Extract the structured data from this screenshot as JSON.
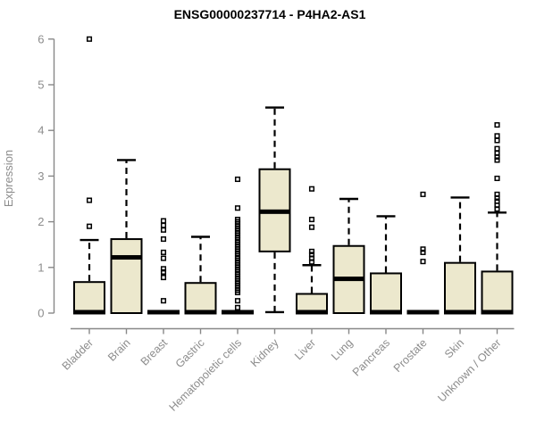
{
  "chart_data": {
    "type": "boxplot",
    "title": "ENSG00000237714 - P4HA2-AS1",
    "ylabel": "Expression",
    "xlabel": "",
    "ylim": [
      0,
      6
    ],
    "yticks": [
      0,
      1,
      2,
      3,
      4,
      5,
      6
    ],
    "grid": false,
    "legend": "none",
    "box_fill": "#ece8cd",
    "box_stroke": "#000000",
    "median_color": "#000000",
    "axis_color": "#888888",
    "tick_label_color": "#8c8c8c",
    "title_color": "#000000",
    "categories": [
      "Bladder",
      "Brain",
      "Breast",
      "Gastric",
      "Hematopoietic cells",
      "Kidney",
      "Liver",
      "Lung",
      "Pancreas",
      "Prostate",
      "Skin",
      "Unknown / Other"
    ],
    "boxes": [
      {
        "label": "Bladder",
        "q1": 0,
        "median": 0.02,
        "q3": 0.68,
        "whisker_low": 0,
        "whisker_high": 1.6,
        "outliers": [
          1.9,
          2.47,
          6.0
        ]
      },
      {
        "label": "Brain",
        "q1": 0,
        "median": 1.22,
        "q3": 1.62,
        "whisker_low": 0,
        "whisker_high": 3.35,
        "outliers": []
      },
      {
        "label": "Breast",
        "q1": 0,
        "median": 0.02,
        "q3": 0.03,
        "whisker_low": 0,
        "whisker_high": 0.03,
        "outliers": [
          0.27,
          0.78,
          0.9,
          0.97,
          1.2,
          1.33,
          1.62,
          1.82,
          1.92,
          2.02
        ]
      },
      {
        "label": "Gastric",
        "q1": 0,
        "median": 0.02,
        "q3": 0.66,
        "whisker_low": 0,
        "whisker_high": 1.67,
        "outliers": []
      },
      {
        "label": "Hematopoietic cells",
        "q1": 0,
        "median": 0.02,
        "q3": 0.03,
        "whisker_low": 0,
        "whisker_high": 0.03,
        "outliers": [
          0.12,
          0.27,
          0.45,
          0.5,
          0.55,
          0.6,
          0.65,
          0.7,
          0.75,
          0.8,
          0.85,
          0.9,
          0.95,
          1.0,
          1.05,
          1.1,
          1.15,
          1.2,
          1.25,
          1.3,
          1.35,
          1.4,
          1.45,
          1.5,
          1.55,
          1.6,
          1.65,
          1.7,
          1.75,
          1.8,
          1.85,
          1.9,
          1.95,
          2.0,
          2.05,
          2.3,
          2.93
        ]
      },
      {
        "label": "Kidney",
        "q1": 1.35,
        "median": 2.22,
        "q3": 3.15,
        "whisker_low": 0.02,
        "whisker_high": 4.5,
        "outliers": []
      },
      {
        "label": "Liver",
        "q1": 0,
        "median": 0.02,
        "q3": 0.42,
        "whisker_low": 0,
        "whisker_high": 1.05,
        "outliers": [
          1.12,
          1.2,
          1.28,
          1.35,
          1.88,
          2.05,
          2.72
        ]
      },
      {
        "label": "Lung",
        "q1": 0,
        "median": 0.75,
        "q3": 1.47,
        "whisker_low": 0,
        "whisker_high": 2.5,
        "outliers": []
      },
      {
        "label": "Pancreas",
        "q1": 0,
        "median": 0.02,
        "q3": 0.87,
        "whisker_low": 0,
        "whisker_high": 2.12,
        "outliers": []
      },
      {
        "label": "Prostate",
        "q1": 0,
        "median": 0.02,
        "q3": 0.03,
        "whisker_low": 0,
        "whisker_high": 0.03,
        "outliers": [
          1.13,
          1.33,
          1.4,
          2.6
        ]
      },
      {
        "label": "Skin",
        "q1": 0,
        "median": 0.02,
        "q3": 1.1,
        "whisker_low": 0,
        "whisker_high": 2.53,
        "outliers": []
      },
      {
        "label": "Unknown / Other",
        "q1": 0,
        "median": 0.02,
        "q3": 0.91,
        "whisker_low": 0,
        "whisker_high": 2.2,
        "outliers": [
          2.28,
          2.36,
          2.45,
          2.52,
          2.6,
          2.95,
          3.35,
          3.42,
          3.5,
          3.6,
          3.78,
          3.88,
          4.12
        ]
      }
    ]
  }
}
